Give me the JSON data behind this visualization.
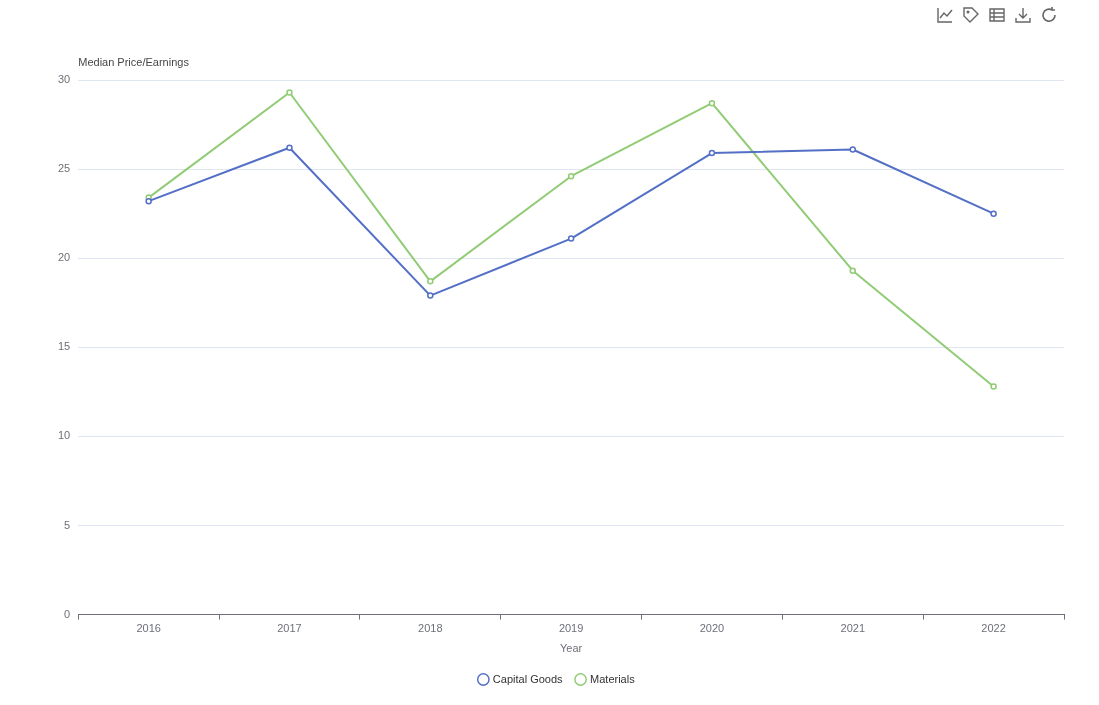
{
  "chart_data": {
    "type": "line",
    "ylabel": "Median Price/Earnings",
    "xlabel": "Year",
    "categories": [
      "2016",
      "2017",
      "2018",
      "2019",
      "2020",
      "2021",
      "2022"
    ],
    "series": [
      {
        "name": "Capital Goods",
        "color": "#5470c6",
        "values": [
          23.2,
          26.2,
          17.9,
          21.1,
          25.9,
          26.1,
          22.5
        ]
      },
      {
        "name": "Materials",
        "color": "#91cc75",
        "values": [
          23.4,
          29.3,
          18.7,
          24.6,
          28.7,
          19.3,
          12.8
        ]
      }
    ],
    "ylim": [
      0,
      30
    ],
    "yticks": [
      0,
      5,
      10,
      15,
      20,
      25,
      30
    ],
    "grid": "y",
    "legend": "bottom",
    "marker": "circle",
    "line_style": "solid"
  }
}
